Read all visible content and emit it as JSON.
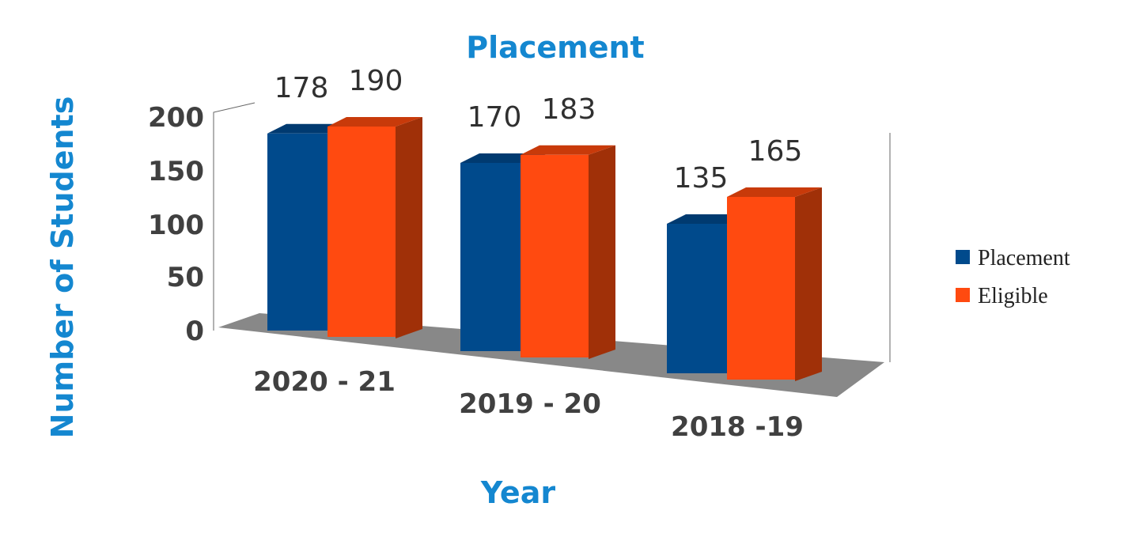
{
  "chart_data": {
    "type": "bar",
    "title": "Placement",
    "xlabel": "Year",
    "ylabel": "Number of Students",
    "categories": [
      "2020 - 21",
      "2019 - 20",
      "2018 -19"
    ],
    "series": [
      {
        "name": "Placement",
        "values": [
          178,
          170,
          135
        ],
        "color": "#004a8c",
        "top_color": "#003a70"
      },
      {
        "name": "Eligible",
        "values": [
          190,
          183,
          165
        ],
        "color": "#ff4a10",
        "side_color": "#a03008",
        "top_color": "#c83a0a"
      }
    ],
    "yticks": [
      "200",
      "150",
      "100",
      "50",
      "0"
    ],
    "ylim": [
      0,
      200
    ],
    "grid": false,
    "legend_position": "right",
    "chart_style": "3d-clustered-column"
  }
}
